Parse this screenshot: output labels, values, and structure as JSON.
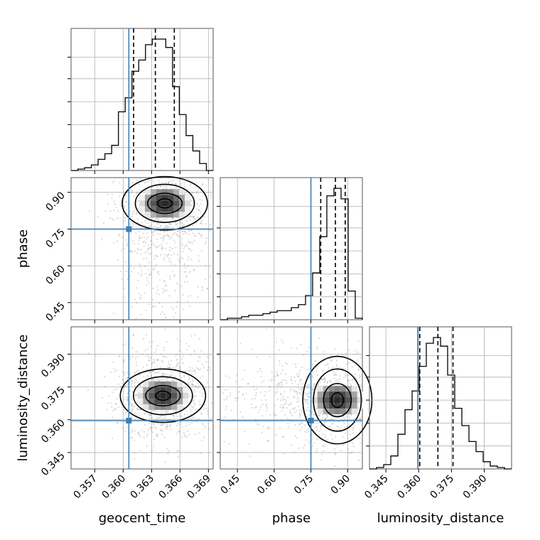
{
  "chart_data": {
    "type": "corner",
    "parameters": [
      "geocent_time",
      "phase",
      "luminosity_distance"
    ],
    "axes": {
      "geocent_time": {
        "label": "geocent_time",
        "range": [
          0.3545,
          0.3695
        ],
        "ticks": [
          0.357,
          0.36,
          0.363,
          0.366,
          0.369
        ],
        "tick_labels": [
          "0.357",
          "0.360",
          "0.363",
          "0.366",
          "0.369"
        ]
      },
      "phase": {
        "label": "phase",
        "range": [
          0.38,
          0.96
        ],
        "ticks": [
          0.45,
          0.6,
          0.75,
          0.9
        ],
        "tick_labels": [
          "0.45",
          "0.60",
          "0.75",
          "0.90"
        ]
      },
      "luminosity_distance": {
        "label": "luminosity_distance",
        "range": [
          0.3375,
          0.4025
        ],
        "ticks": [
          0.345,
          0.36,
          0.375,
          0.39
        ],
        "tick_labels": [
          "0.345",
          "0.360",
          "0.375",
          "0.390"
        ]
      }
    },
    "truths": {
      "geocent_time": 0.3606,
      "phase": 0.75,
      "luminosity_distance": 0.3596
    },
    "quantiles": {
      "geocent_time": [
        0.3611,
        0.3634,
        0.3654
      ],
      "phase": [
        0.79,
        0.85,
        0.89
      ],
      "luminosity_distance": [
        0.3605,
        0.3688,
        0.3757
      ]
    },
    "histograms": {
      "geocent_time": [
        0,
        1,
        2,
        4,
        8,
        12,
        18,
        42,
        52,
        71,
        79,
        90,
        94,
        94,
        88,
        60,
        40,
        25,
        14,
        5,
        0
      ],
      "phase": [
        0,
        1,
        1,
        2,
        3,
        3,
        4,
        5,
        6,
        6,
        8,
        10,
        16,
        31,
        55,
        82,
        87,
        80,
        19,
        1
      ],
      "luminosity_distance": [
        0,
        1,
        3,
        9,
        24,
        41,
        54,
        71,
        87,
        91,
        85,
        65,
        42,
        30,
        19,
        12,
        5,
        2,
        1,
        0
      ]
    },
    "peaks_2d": {
      "phase_vs_geocent_time": {
        "x": 0.3644,
        "y": 0.855
      },
      "luminosity_distance_vs_geocent_time": {
        "x": 0.3642,
        "y": 0.371
      },
      "luminosity_distance_vs_phase": {
        "x": 0.858,
        "y": 0.369
      }
    },
    "grid": true,
    "legend": "none"
  }
}
